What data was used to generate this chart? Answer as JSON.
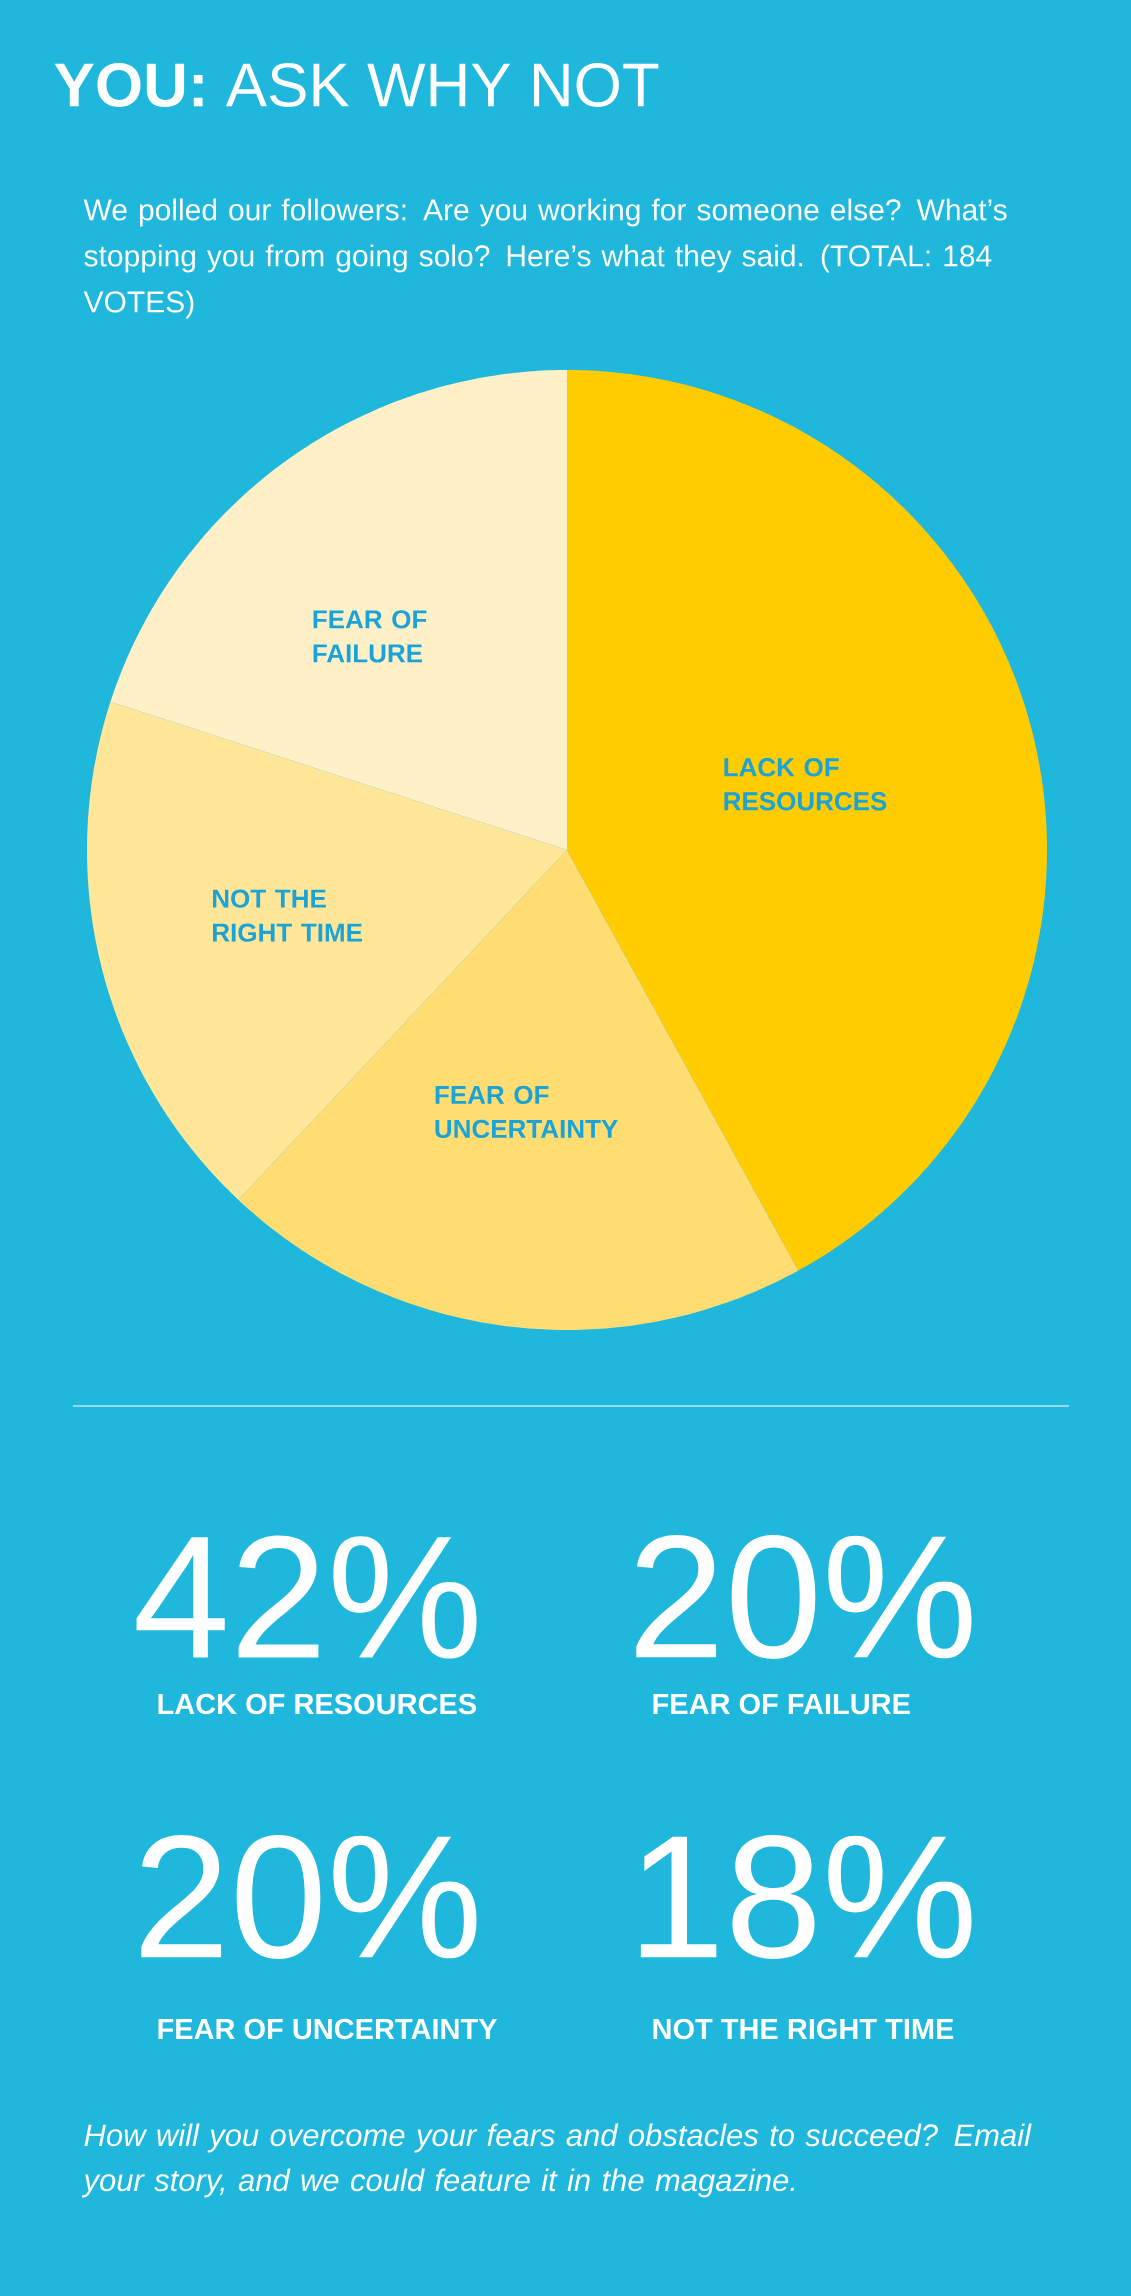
{
  "chart_data": {
    "type": "pie",
    "title": "**YOU:** ASK WHY NOT",
    "subtitle": "We polled our followers: Are you working for someone else? What’s stopping you from going solo? Here’s what they said. (TOTAL: 184 VOTES)",
    "categories": [
      "LACK OF RESOURCES",
      "FEAR OF UNCERTAINTY",
      "NOT THE RIGHT TIME",
      "FEAR OF FAILURE"
    ],
    "values": [
      42,
      20,
      18,
      20
    ],
    "colors": [
      "#ffcc00",
      "#ffdd73",
      "#ffe699",
      "#fff0c8"
    ],
    "annotations": [
      "42%",
      "LACK OF RESOURCES",
      "20%",
      "FEAR OF FAILURE",
      "20%",
      "FEAR OF UNCERTAINTY",
      "18%",
      "NOT THE RIGHT TIME",
      "How will you overcome your fears and obstacles to succeed? Email your story, and we could feature it in the magazine."
    ]
  }
}
